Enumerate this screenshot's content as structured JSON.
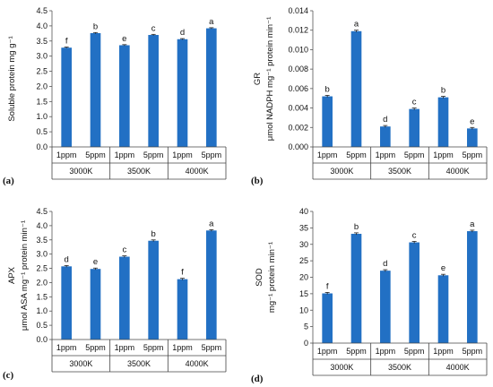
{
  "accent_color": "#2270c4",
  "chart_data": [
    {
      "type": "bar",
      "panel": "(a)",
      "ylabel_lines": [
        "Soluble protein mg g⁻¹"
      ],
      "ylim": [
        0,
        4.5
      ],
      "yticks": [
        "0.0",
        "0.5",
        "1.0",
        "1.5",
        "2.0",
        "2.5",
        "3.0",
        "3.5",
        "4.0",
        "4.5"
      ],
      "categories": [
        "1ppm",
        "5ppm",
        "1ppm",
        "5ppm",
        "1ppm",
        "5ppm"
      ],
      "groups": [
        "3000K",
        "3500K",
        "4000K"
      ],
      "values": [
        3.28,
        3.76,
        3.36,
        3.7,
        3.56,
        3.92
      ],
      "errors": [
        0.02,
        0.02,
        0.02,
        0.02,
        0.02,
        0.02
      ],
      "letters": [
        "f",
        "b",
        "e",
        "c",
        "d",
        "a"
      ]
    },
    {
      "type": "bar",
      "panel": "(b)",
      "ylabel_lines": [
        "GR",
        "μmol NADPH mg⁻¹ protein min⁻¹"
      ],
      "ylim": [
        0,
        0.014
      ],
      "yticks": [
        "0.000",
        "0.002",
        "0.004",
        "0.006",
        "0.008",
        "0.010",
        "0.012",
        "0.014"
      ],
      "categories": [
        "1ppm",
        "5ppm",
        "1ppm",
        "5ppm",
        "1ppm",
        "5ppm"
      ],
      "groups": [
        "3000K",
        "3500K",
        "4000K"
      ],
      "values": [
        0.0052,
        0.0119,
        0.0021,
        0.0039,
        0.0051,
        0.0019
      ],
      "errors": [
        0.0001,
        0.0001,
        0.0001,
        0.0001,
        0.0001,
        0.0001
      ],
      "letters": [
        "b",
        "a",
        "d",
        "c",
        "b",
        "e"
      ]
    },
    {
      "type": "bar",
      "panel": "(c)",
      "ylabel_lines": [
        "APX",
        "μmol ASA mg⁻¹ protein min⁻¹"
      ],
      "ylim": [
        0,
        4.5
      ],
      "yticks": [
        "0.0",
        "0.5",
        "1.0",
        "1.5",
        "2.0",
        "2.5",
        "3.0",
        "3.5",
        "4.0",
        "4.5"
      ],
      "categories": [
        "1ppm",
        "5ppm",
        "1ppm",
        "5ppm",
        "1ppm",
        "5ppm"
      ],
      "groups": [
        "3000K",
        "3500K",
        "4000K"
      ],
      "values": [
        2.57,
        2.48,
        2.91,
        3.47,
        2.12,
        3.83
      ],
      "errors": [
        0.03,
        0.03,
        0.03,
        0.03,
        0.03,
        0.03
      ],
      "letters": [
        "d",
        "e",
        "c",
        "b",
        "f",
        "a"
      ]
    },
    {
      "type": "bar",
      "panel": "(d)",
      "ylabel_lines": [
        "SOD",
        "mg⁻¹ protein min⁻¹"
      ],
      "ylim": [
        0,
        40
      ],
      "yticks": [
        "0",
        "5",
        "10",
        "15",
        "20",
        "25",
        "30",
        "35",
        "40"
      ],
      "categories": [
        "1ppm",
        "5ppm",
        "1ppm",
        "5ppm",
        "1ppm",
        "5ppm"
      ],
      "groups": [
        "3000K",
        "3500K",
        "4000K"
      ],
      "values": [
        15.1,
        33.2,
        22.0,
        30.6,
        20.6,
        34.0
      ],
      "errors": [
        0.3,
        0.3,
        0.3,
        0.3,
        0.3,
        0.3
      ],
      "letters": [
        "f",
        "b",
        "d",
        "c",
        "e",
        "a"
      ]
    }
  ]
}
